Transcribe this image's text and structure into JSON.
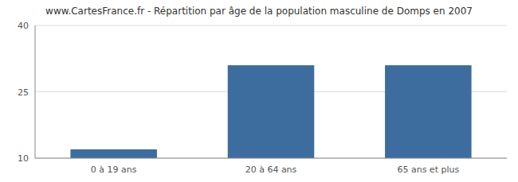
{
  "chart_data": {
    "type": "bar",
    "title": "www.CartesFrance.fr - Répartition par âge de la population masculine de Domps en 2007",
    "categories": [
      "0 à 19 ans",
      "20 à 64 ans",
      "65 ans et plus"
    ],
    "values": [
      12,
      31,
      31
    ],
    "color": "#3d6d9e",
    "ylim": [
      10,
      40
    ],
    "yticks": [
      10,
      25,
      40
    ],
    "grid": true
  }
}
